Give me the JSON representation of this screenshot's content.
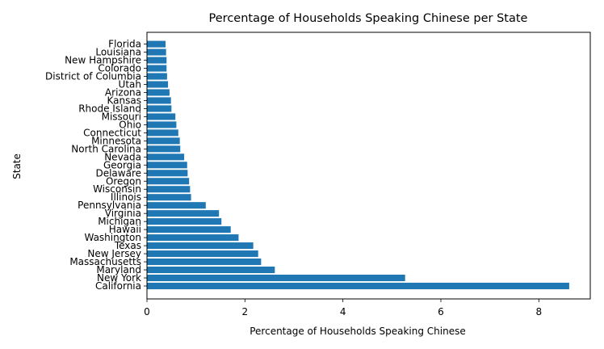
{
  "chart_data": {
    "type": "bar",
    "orientation": "horizontal",
    "title": "Percentage of Households Speaking Chinese per State",
    "xlabel": "Percentage of Households Speaking Chinese",
    "ylabel": "State",
    "xlim": [
      0,
      9.05
    ],
    "xticks": [
      0,
      2,
      4,
      6,
      8
    ],
    "grid": false,
    "bar_color": "#1f77b4",
    "categories": [
      "California",
      "New York",
      "Maryland",
      "Massachusetts",
      "New Jersey",
      "Texas",
      "Washington",
      "Hawaii",
      "Michigan",
      "Virginia",
      "Pennsylvania",
      "Illinois",
      "Wisconsin",
      "Oregon",
      "Delaware",
      "Georgia",
      "Nevada",
      "North Carolina",
      "Minnesota",
      "Connecticut",
      "Ohio",
      "Missouri",
      "Rhode Island",
      "Kansas",
      "Arizona",
      "Utah",
      "District of Columbia",
      "Colorado",
      "New Hampshire",
      "Louisiana",
      "Florida"
    ],
    "values": [
      8.62,
      5.27,
      2.61,
      2.33,
      2.27,
      2.17,
      1.87,
      1.71,
      1.52,
      1.47,
      1.2,
      0.9,
      0.88,
      0.86,
      0.83,
      0.82,
      0.76,
      0.68,
      0.67,
      0.64,
      0.6,
      0.58,
      0.5,
      0.49,
      0.46,
      0.43,
      0.41,
      0.4,
      0.4,
      0.39,
      0.38
    ]
  }
}
